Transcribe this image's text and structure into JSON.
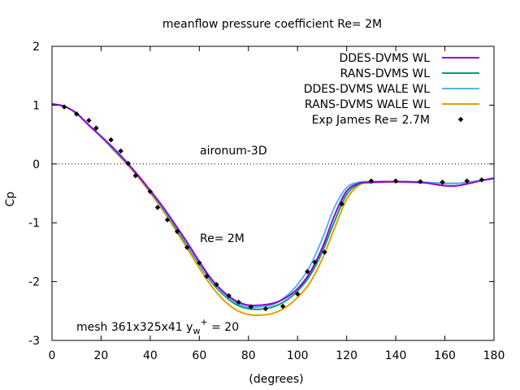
{
  "chart_data": {
    "type": "line",
    "title": "meanflow pressure coefficient  Re= 2M",
    "xlabel": "(degrees)",
    "ylabel": "Cp",
    "xlim": [
      0,
      180
    ],
    "ylim": [
      -3,
      2
    ],
    "xticks": [
      "0",
      "20",
      "40",
      "60",
      "80",
      "100",
      "120",
      "140",
      "160",
      "180"
    ],
    "yticks": [
      "-3",
      "-2",
      "-1",
      "0",
      "1",
      "2"
    ],
    "grid": false,
    "zero_line": true,
    "legend_position": "top-right",
    "annotations": {
      "case": "aironum-3D",
      "reynolds": "Re= 2M",
      "mesh_prefix": "mesh 361x325x41 y",
      "mesh_sub": "w",
      "mesh_sup": "+",
      "mesh_suffix": " = 20"
    },
    "series": [
      {
        "name": "DDES-DVMS WL",
        "color": "#9400d3",
        "style": "line",
        "x": [
          0,
          5,
          10,
          15,
          20,
          25,
          30,
          35,
          40,
          45,
          50,
          55,
          60,
          65,
          70,
          75,
          80,
          85,
          90,
          95,
          100,
          105,
          110,
          115,
          120,
          125,
          130,
          140,
          150,
          155,
          160,
          165,
          170,
          175,
          180
        ],
        "y": [
          1.02,
          0.98,
          0.86,
          0.66,
          0.47,
          0.27,
          0.05,
          -0.19,
          -0.45,
          -0.72,
          -1.02,
          -1.33,
          -1.66,
          -1.96,
          -2.18,
          -2.33,
          -2.4,
          -2.4,
          -2.37,
          -2.28,
          -2.12,
          -1.85,
          -1.43,
          -0.88,
          -0.46,
          -0.33,
          -0.31,
          -0.3,
          -0.31,
          -0.34,
          -0.37,
          -0.37,
          -0.33,
          -0.28,
          -0.24
        ]
      },
      {
        "name": "RANS-DVMS WL",
        "color": "#009e73",
        "style": "line",
        "x": [
          0,
          5,
          10,
          15,
          20,
          25,
          30,
          35,
          40,
          45,
          50,
          55,
          60,
          65,
          70,
          75,
          80,
          85,
          90,
          95,
          100,
          105,
          110,
          115,
          120,
          125,
          130,
          140,
          150,
          155,
          160,
          165,
          170,
          175,
          180
        ],
        "y": [
          1.02,
          0.98,
          0.86,
          0.66,
          0.46,
          0.25,
          0.03,
          -0.2,
          -0.47,
          -0.75,
          -1.06,
          -1.38,
          -1.71,
          -2.01,
          -2.23,
          -2.39,
          -2.46,
          -2.47,
          -2.43,
          -2.33,
          -2.16,
          -1.9,
          -1.5,
          -0.98,
          -0.52,
          -0.34,
          -0.31,
          -0.3,
          -0.31,
          -0.32,
          -0.33,
          -0.33,
          -0.31,
          -0.28,
          -0.25
        ]
      },
      {
        "name": "DDES-DVMS WALE WL",
        "color": "#56b4e9",
        "style": "line",
        "x": [
          0,
          5,
          10,
          15,
          20,
          25,
          30,
          35,
          40,
          45,
          50,
          55,
          60,
          65,
          70,
          75,
          80,
          85,
          90,
          95,
          100,
          105,
          110,
          115,
          120,
          125,
          130,
          140,
          150,
          155,
          160,
          165,
          170,
          175,
          180
        ],
        "y": [
          1.02,
          0.98,
          0.86,
          0.66,
          0.46,
          0.26,
          0.04,
          -0.2,
          -0.46,
          -0.74,
          -1.04,
          -1.36,
          -1.69,
          -1.99,
          -2.21,
          -2.36,
          -2.43,
          -2.43,
          -2.39,
          -2.26,
          -2.05,
          -1.74,
          -1.28,
          -0.74,
          -0.4,
          -0.31,
          -0.3,
          -0.3,
          -0.31,
          -0.32,
          -0.33,
          -0.33,
          -0.31,
          -0.28,
          -0.25
        ]
      },
      {
        "name": "RANS-DVMS WALE WL",
        "color": "#e69f00",
        "style": "line",
        "x": [
          0,
          5,
          10,
          15,
          20,
          25,
          30,
          35,
          40,
          45,
          50,
          55,
          60,
          65,
          70,
          75,
          80,
          85,
          90,
          95,
          100,
          105,
          110,
          115,
          120,
          125,
          130,
          140,
          150,
          155,
          160,
          165,
          170,
          175,
          180
        ],
        "y": [
          1.02,
          0.98,
          0.86,
          0.66,
          0.46,
          0.24,
          0.02,
          -0.22,
          -0.49,
          -0.78,
          -1.1,
          -1.43,
          -1.77,
          -2.08,
          -2.32,
          -2.48,
          -2.56,
          -2.57,
          -2.54,
          -2.44,
          -2.27,
          -2.02,
          -1.62,
          -1.1,
          -0.6,
          -0.36,
          -0.32,
          -0.31,
          -0.32,
          -0.33,
          -0.33,
          -0.33,
          -0.31,
          -0.28,
          -0.25
        ]
      },
      {
        "name": "Exp James Re= 2.7M",
        "color": "#000000",
        "style": "points",
        "x": [
          5,
          10,
          15,
          18,
          24,
          28,
          31,
          34,
          40,
          43,
          47,
          51,
          55,
          60,
          63,
          67,
          72,
          76,
          81,
          87,
          94,
          100,
          104,
          107,
          111,
          118,
          130,
          140,
          150,
          159,
          169,
          175
        ],
        "y": [
          0.97,
          0.85,
          0.74,
          0.61,
          0.41,
          0.22,
          0.01,
          -0.2,
          -0.47,
          -0.74,
          -0.95,
          -1.15,
          -1.42,
          -1.68,
          -1.91,
          -2.05,
          -2.24,
          -2.35,
          -2.43,
          -2.46,
          -2.42,
          -2.21,
          -1.83,
          -1.67,
          -1.5,
          -0.68,
          -0.29,
          -0.29,
          -0.3,
          -0.31,
          -0.29,
          -0.27
        ]
      }
    ]
  }
}
